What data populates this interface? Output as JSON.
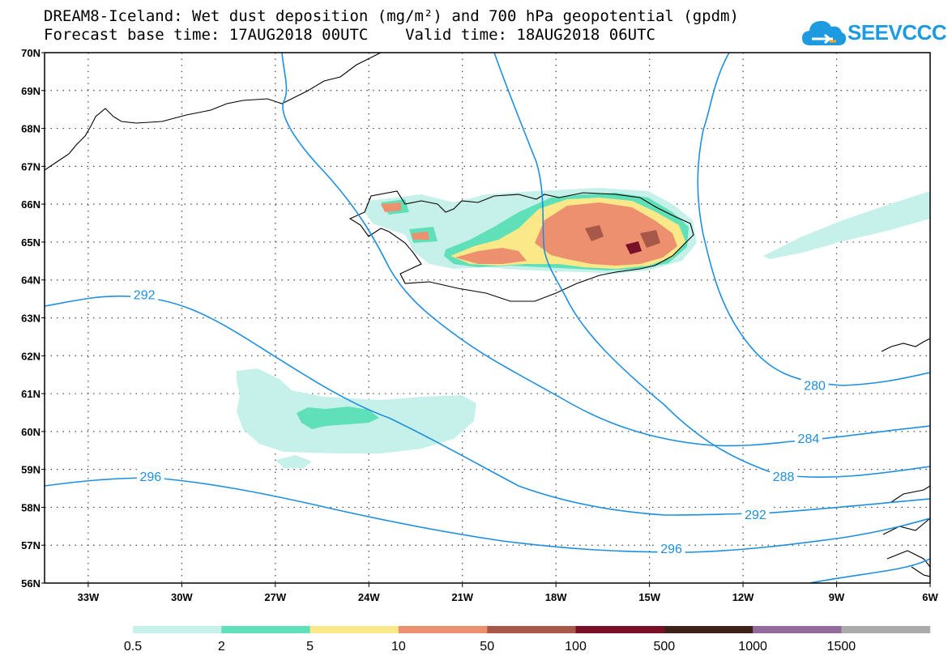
{
  "header": {
    "title_line1": "DREAM8-Iceland: Wet dust deposition (mg/m²) and 700 hPa geopotential (gpdm)",
    "title_line2": "Forecast base time: 17AUG2018 00UTC    Valid time: 18AUG2018 06UTC"
  },
  "logo": {
    "text": "SEEVCCC",
    "icon": "cloud-icon",
    "color": "#1e9be0"
  },
  "map": {
    "lat_labels": [
      "70N",
      "69N",
      "68N",
      "67N",
      "66N",
      "65N",
      "64N",
      "63N",
      "62N",
      "61N",
      "60N",
      "59N",
      "58N",
      "57N",
      "56N"
    ],
    "lon_labels": [
      "33W",
      "30W",
      "27W",
      "24W",
      "21W",
      "18W",
      "15W",
      "12W",
      "9W",
      "6W"
    ],
    "lat_range": [
      56,
      70
    ],
    "lon_range": [
      -34.4,
      -6
    ],
    "gridlines": true,
    "contour_color": "#1e8fe0",
    "contour_labels": [
      {
        "value": "292",
        "lon": -31.2,
        "lat": 63.6
      },
      {
        "value": "296",
        "lon": -31.0,
        "lat": 58.8
      },
      {
        "value": "280",
        "lon": -9.7,
        "lat": 61.2
      },
      {
        "value": "284",
        "lon": -9.9,
        "lat": 59.8
      },
      {
        "value": "288",
        "lon": -10.7,
        "lat": 58.8
      },
      {
        "value": "292",
        "lon": -11.6,
        "lat": 57.8
      },
      {
        "value": "296",
        "lon": -14.3,
        "lat": 56.9
      }
    ]
  },
  "colorbar": {
    "labels": [
      "0.5",
      "2",
      "5",
      "10",
      "50",
      "100",
      "500",
      "1000",
      "1500"
    ],
    "colors": [
      "#c6f1ea",
      "#5fe0b8",
      "#fbe989",
      "#ec9070",
      "#a85848",
      "#7a0f28",
      "#3c2218",
      "#936a9e",
      "#aaaaaa"
    ]
  }
}
